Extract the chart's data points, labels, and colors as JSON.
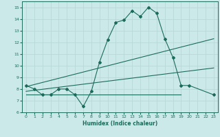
{
  "xlabel": "Humidex (Indice chaleur)",
  "xlim": [
    -0.5,
    23.5
  ],
  "ylim": [
    6,
    15.5
  ],
  "yticks": [
    6,
    7,
    8,
    9,
    10,
    11,
    12,
    13,
    14,
    15
  ],
  "xticks": [
    0,
    1,
    2,
    3,
    4,
    5,
    6,
    7,
    8,
    9,
    10,
    11,
    12,
    13,
    14,
    15,
    16,
    17,
    18,
    19,
    20,
    21,
    22,
    23
  ],
  "background_color": "#cce9e9",
  "line_color": "#1a6b5a",
  "grid_color": "#b8d8d8",
  "curve_main": {
    "x": [
      0,
      1,
      2,
      3,
      4,
      5,
      6,
      7,
      8,
      9,
      10,
      11,
      12,
      13,
      14,
      15,
      16,
      17,
      18,
      19,
      20,
      23
    ],
    "y": [
      8.3,
      8.0,
      7.5,
      7.5,
      8.0,
      8.0,
      7.5,
      6.5,
      7.8,
      10.3,
      12.2,
      13.7,
      13.9,
      14.7,
      14.2,
      15.0,
      14.5,
      12.3,
      10.7,
      8.3,
      8.3,
      7.5
    ]
  },
  "line_diag1": {
    "x": [
      0,
      23
    ],
    "y": [
      8.2,
      12.3
    ]
  },
  "line_diag2": {
    "x": [
      0,
      23
    ],
    "y": [
      7.8,
      9.8
    ]
  },
  "line_flat": {
    "x": [
      0,
      19
    ],
    "y": [
      7.5,
      7.5
    ]
  }
}
